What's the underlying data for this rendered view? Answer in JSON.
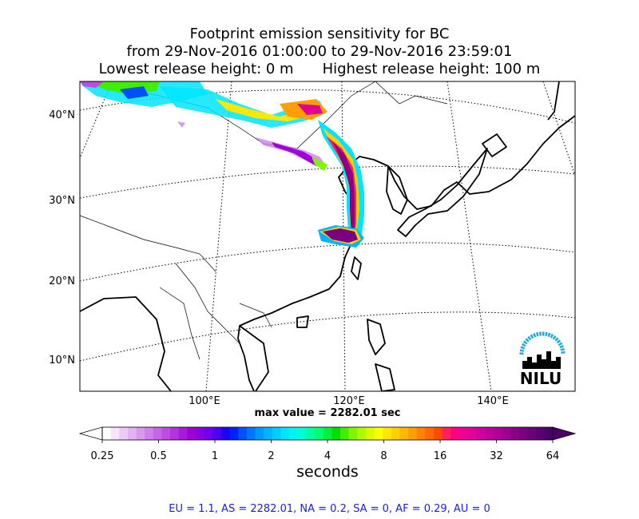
{
  "title": {
    "line1": "Footprint emission sensitivity for BC",
    "line2": "from 29-Nov-2016 01:00:00 to 29-Nov-2016 23:59:01",
    "lowest": "Lowest release height: 0 m",
    "highest": "Highest release height: 100 m"
  },
  "map": {
    "lat_labels": [
      "40°N",
      "30°N",
      "20°N",
      "10°N"
    ],
    "lon_labels": [
      "100°E",
      "120°E",
      "140°E"
    ],
    "logo_text": "NILU",
    "logo_color": "#1ea9e1"
  },
  "max_value": "max value = 2282.01 sec",
  "colorbar": {
    "ticks": [
      "0.25",
      "0.5",
      "1",
      "2",
      "4",
      "8",
      "16",
      "32",
      "64"
    ],
    "label": "seconds",
    "colors": [
      "#ffffff",
      "#f5e6fb",
      "#ecccf7",
      "#e2b3f3",
      "#d999ef",
      "#cf80eb",
      "#c566e7",
      "#bb4de3",
      "#b233df",
      "#a81adb",
      "#9e00d7",
      "#8800e4",
      "#6f00ee",
      "#4b00f3",
      "#1e00f5",
      "#0020ff",
      "#0050ff",
      "#0078ff",
      "#0098ff",
      "#00b5ff",
      "#00ceff",
      "#00e5ff",
      "#00f5f0",
      "#00ffd0",
      "#00ffa0",
      "#00ff70",
      "#00f040",
      "#00dd00",
      "#40ee00",
      "#80f500",
      "#b0fa00",
      "#d8fd00",
      "#ffff00",
      "#ffe800",
      "#ffd000",
      "#ffb800",
      "#ff9e00",
      "#ff8400",
      "#ff6a00",
      "#ff4a00",
      "#ff2060",
      "#ff0080",
      "#f00090",
      "#e0009a",
      "#d0009e",
      "#c0009c",
      "#b00096",
      "#9e0090",
      "#8c0088",
      "#7a0080",
      "#6a007a",
      "#5a0070",
      "#4a0068"
    ]
  },
  "summary": "EU = 1.1,  AS = 2282.01,  NA = 0.2,  SA = 0,  AF = 0.29,  AU = 0"
}
